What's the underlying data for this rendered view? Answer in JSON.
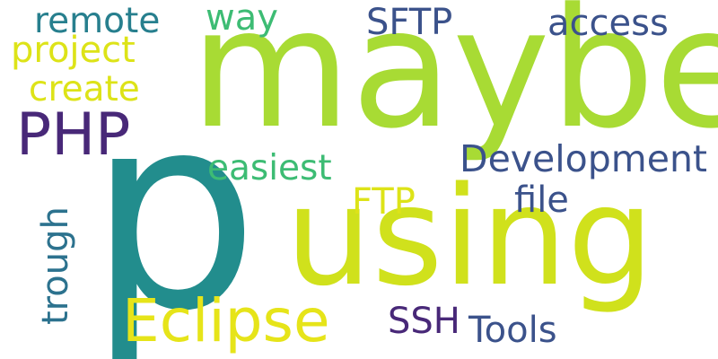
{
  "words": {
    "maybe": {
      "text": "maybe",
      "color": "#a8db34"
    },
    "p": {
      "text": "p",
      "color": "#228d8d"
    },
    "using": {
      "text": "using",
      "color": "#d0e11c"
    },
    "eclipse": {
      "text": "Eclipse",
      "color": "#e6e419"
    },
    "php": {
      "text": "PHP",
      "color": "#482878"
    },
    "development": {
      "text": "Development",
      "color": "#3b528b"
    },
    "remote": {
      "text": "remote",
      "color": "#277f8e"
    },
    "project": {
      "text": "project",
      "color": "#dde318"
    },
    "create": {
      "text": "create",
      "color": "#dde318"
    },
    "way": {
      "text": "way",
      "color": "#3dbc74"
    },
    "sftp": {
      "text": "SFTP",
      "color": "#3b528b"
    },
    "access": {
      "text": "access",
      "color": "#3b528b"
    },
    "easiest": {
      "text": "easiest",
      "color": "#3dbc74"
    },
    "ftp": {
      "text": "FTP",
      "color": "#dde318"
    },
    "file": {
      "text": "file",
      "color": "#3b528b"
    },
    "trough": {
      "text": "trough",
      "color": "#2c728e"
    },
    "ssh": {
      "text": "SSH",
      "color": "#482878"
    },
    "tools": {
      "text": "Tools",
      "color": "#3b528b"
    }
  }
}
